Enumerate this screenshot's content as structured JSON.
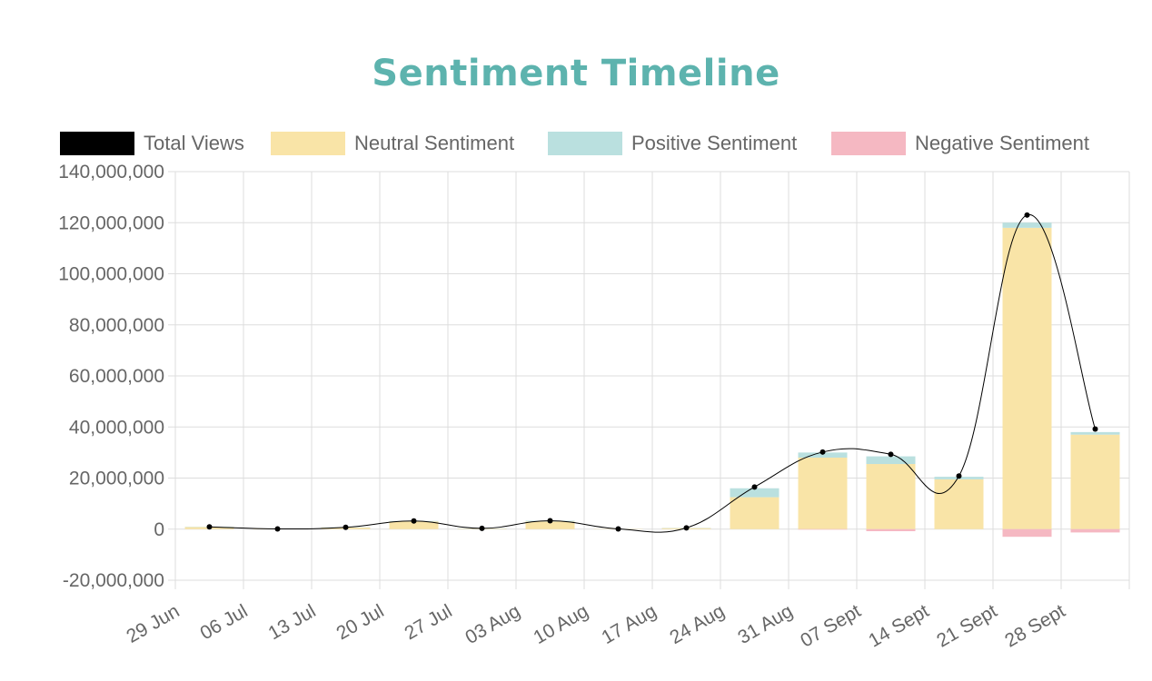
{
  "colors": {
    "title": "#5db3ae",
    "neutral": "#f9e4a7",
    "positive": "#bae0df",
    "negative": "#f5b8c2",
    "total": "#000000",
    "grid": "#dddddd",
    "text": "#666666"
  },
  "chart_data": {
    "type": "bar",
    "title": "Sentiment Timeline",
    "legend": [
      "Total Views",
      "Neutral Sentiment",
      "Positive Sentiment",
      "Negative Sentiment"
    ],
    "legend_position": "top",
    "grid": true,
    "ylim": [
      -20000000,
      140000000
    ],
    "y_ticks": [
      {
        "value": 140000000,
        "label": "140,000,000"
      },
      {
        "value": 120000000,
        "label": "120,000,000"
      },
      {
        "value": 100000000,
        "label": "100,000,000"
      },
      {
        "value": 80000000,
        "label": "80,000,000"
      },
      {
        "value": 60000000,
        "label": "60,000,000"
      },
      {
        "value": 40000000,
        "label": "40,000,000"
      },
      {
        "value": 20000000,
        "label": "20,000,000"
      },
      {
        "value": 0,
        "label": "0"
      },
      {
        "value": -20000000,
        "label": "-20,000,000"
      }
    ],
    "categories": [
      "29 Jun",
      "06 Jul",
      "13 Jul",
      "20 Jul",
      "27 Jul",
      "03 Aug",
      "10 Aug",
      "17 Aug",
      "24 Aug",
      "31 Aug",
      "07 Sept",
      "14 Sept",
      "21 Sept",
      "28 Sept"
    ],
    "series": [
      {
        "name": "Total Views",
        "kind": "line",
        "values": [
          900000,
          100000,
          700000,
          3200000,
          300000,
          3300000,
          100000,
          500000,
          16500000,
          30200000,
          29300000,
          20800000,
          123000000,
          39200000
        ]
      },
      {
        "name": "Neutral Sentiment",
        "kind": "bar",
        "values": [
          800000,
          100000,
          600000,
          3000000,
          200000,
          3000000,
          100000,
          400000,
          12500000,
          28000000,
          25500000,
          19500000,
          118000000,
          37000000
        ]
      },
      {
        "name": "Positive Sentiment",
        "kind": "bar",
        "values": [
          100000,
          0,
          100000,
          200000,
          100000,
          300000,
          0,
          100000,
          3500000,
          2000000,
          3000000,
          1000000,
          2000000,
          1000000
        ]
      },
      {
        "name": "Negative Sentiment",
        "kind": "bar",
        "values": [
          0,
          0,
          0,
          0,
          0,
          0,
          0,
          0,
          0,
          -200000,
          -800000,
          0,
          -3000000,
          -1300000
        ]
      }
    ]
  }
}
